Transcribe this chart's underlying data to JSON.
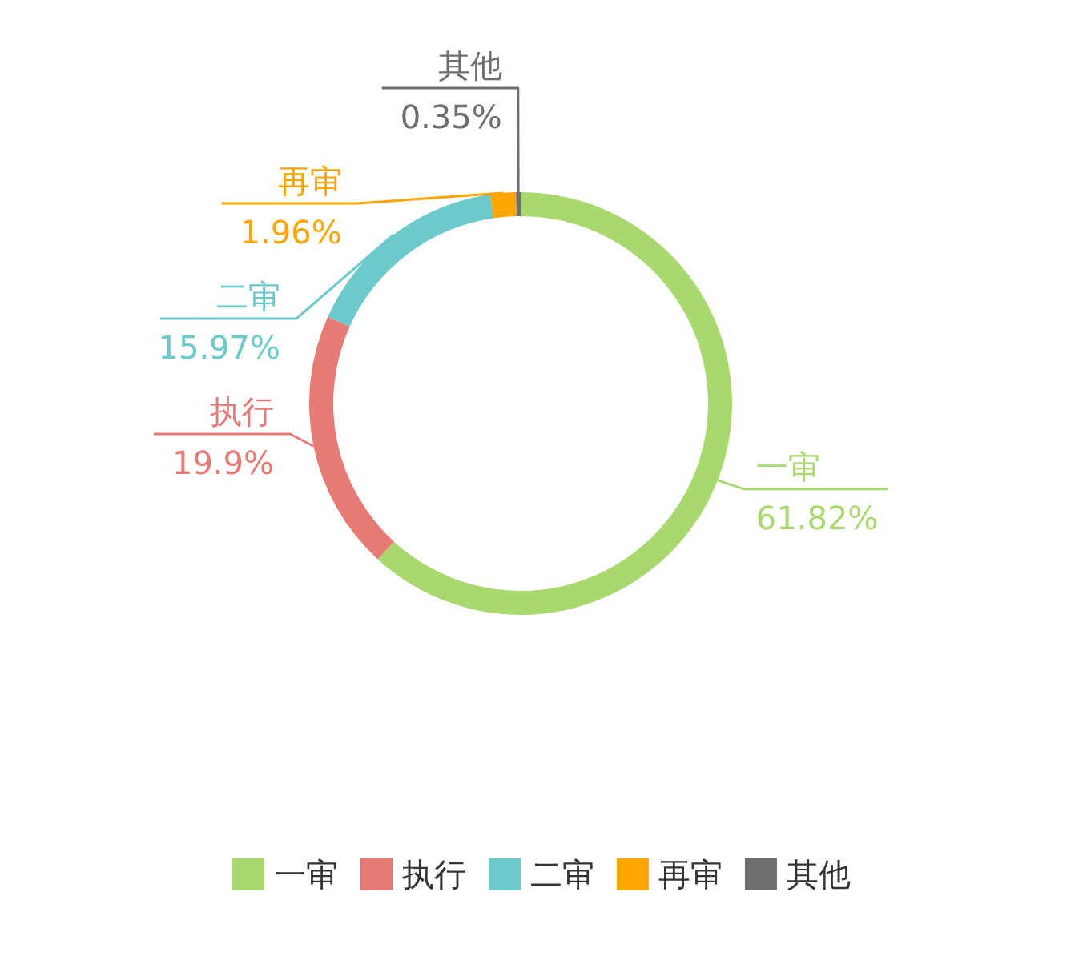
{
  "chart_data": {
    "type": "donut",
    "categories": [
      "一审",
      "执行",
      "二审",
      "再审",
      "其他"
    ],
    "values": [
      61.82,
      19.9,
      15.97,
      1.96,
      0.35
    ],
    "colors": [
      "#a9d86e",
      "#e87a76",
      "#6ccacb",
      "#ffa500",
      "#6e6e6e"
    ],
    "value_labels": [
      "61.82%",
      "19.9%",
      "15.97%",
      "1.96%",
      "0.35%"
    ],
    "legend": "bottom"
  }
}
